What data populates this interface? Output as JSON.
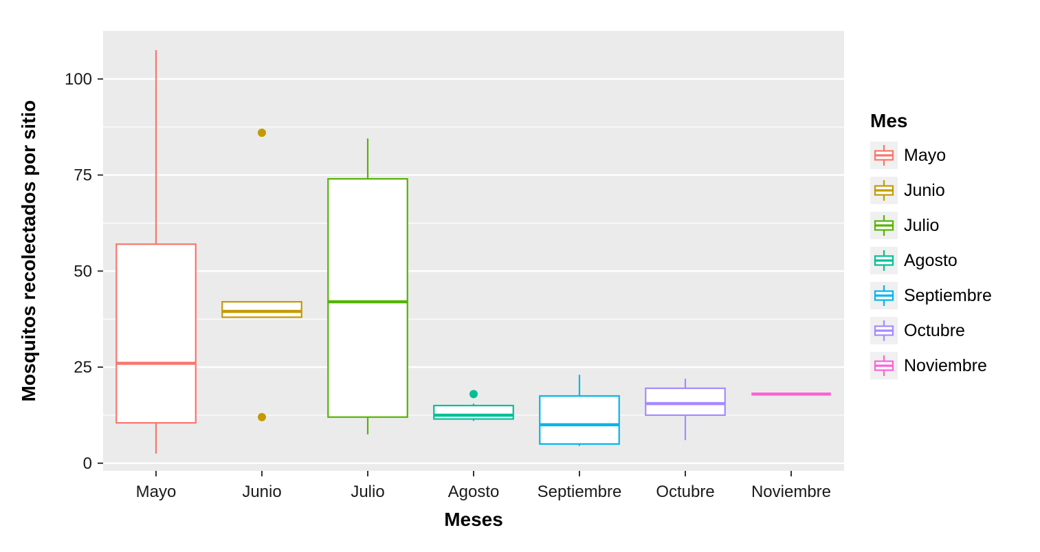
{
  "chart_data": {
    "type": "boxplot",
    "title": "",
    "xlabel": "Meses",
    "ylabel": "Mosquitos recolectados por sitio",
    "legend_title": "Mes",
    "categories": [
      "Mayo",
      "Junio",
      "Julio",
      "Agosto",
      "Septiembre",
      "Octubre",
      "Noviembre"
    ],
    "yticks": [
      0,
      25,
      50,
      75,
      100
    ],
    "minor_gridlines": [
      12.5,
      37.5,
      62.5,
      87.5
    ],
    "ylim": [
      -2,
      112.5
    ],
    "legend_position": "right",
    "panel_background": "#EBEBEB",
    "gridline_color": "#FFFFFF",
    "series": [
      {
        "name": "Mayo",
        "color": "#F8766D",
        "whisker_low": 2.5,
        "q1": 10.5,
        "median": 26,
        "q3": 57,
        "whisker_high": 107.5,
        "outliers": []
      },
      {
        "name": "Junio",
        "color": "#C49A00",
        "whisker_low": 38,
        "q1": 38,
        "median": 39.5,
        "q3": 42,
        "whisker_high": 42,
        "outliers": [
          86,
          12
        ]
      },
      {
        "name": "Julio",
        "color": "#53B400",
        "whisker_low": 7.5,
        "q1": 12,
        "median": 42,
        "q3": 74,
        "whisker_high": 84.5,
        "outliers": []
      },
      {
        "name": "Agosto",
        "color": "#00C094",
        "whisker_low": 11,
        "q1": 11.5,
        "median": 12.5,
        "q3": 15,
        "whisker_high": 15.5,
        "outliers": [
          18
        ]
      },
      {
        "name": "Septiembre",
        "color": "#00B6EB",
        "whisker_low": 4.5,
        "q1": 5,
        "median": 10,
        "q3": 17.5,
        "whisker_high": 23,
        "outliers": []
      },
      {
        "name": "Octubre",
        "color": "#A58AFF",
        "whisker_low": 6,
        "q1": 12.5,
        "median": 15.5,
        "q3": 19.5,
        "whisker_high": 22,
        "outliers": []
      },
      {
        "name": "Noviembre",
        "color": "#FB61D7",
        "whisker_low": 18,
        "q1": 18,
        "median": 18,
        "q3": 18,
        "whisker_high": 18,
        "outliers": []
      }
    ]
  }
}
